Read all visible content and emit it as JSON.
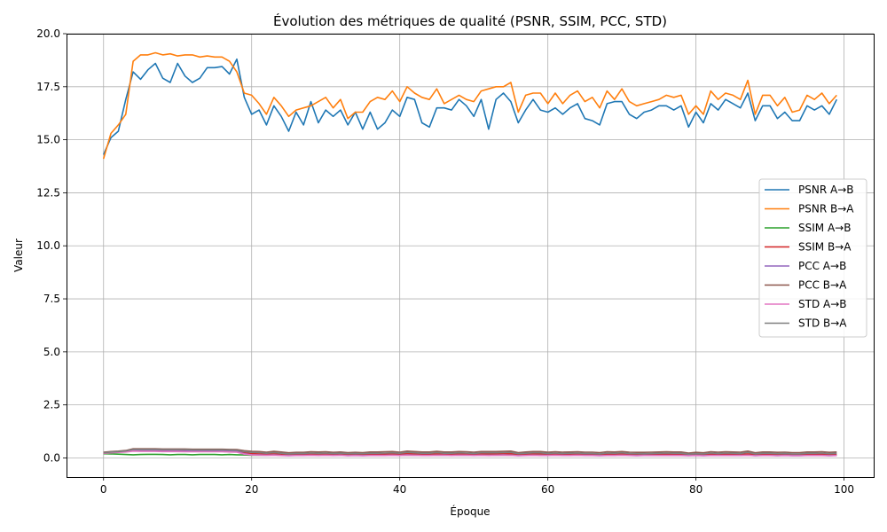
{
  "chart_data": {
    "type": "line",
    "title": "Évolution des métriques de qualité (PSNR, SSIM, PCC, STD)",
    "xlabel": "Époque",
    "ylabel": "Valeur",
    "xlim": [
      -5,
      104
    ],
    "ylim": [
      -0.9,
      20.0
    ],
    "x_ticks": [
      0,
      20,
      40,
      60,
      80,
      100
    ],
    "x_tick_labels": [
      "0",
      "20",
      "40",
      "60",
      "80",
      "100"
    ],
    "y_ticks": [
      0,
      2.5,
      5,
      7.5,
      10,
      12.5,
      15,
      17.5,
      20
    ],
    "y_tick_labels": [
      "0.0",
      "2.5",
      "5.0",
      "7.5",
      "10.0",
      "12.5",
      "15.0",
      "17.5",
      "20.0"
    ],
    "grid": true,
    "legend_position": "center-right",
    "x": [
      0,
      1,
      2,
      3,
      4,
      5,
      6,
      7,
      8,
      9,
      10,
      11,
      12,
      13,
      14,
      15,
      16,
      17,
      18,
      19,
      20,
      21,
      22,
      23,
      24,
      25,
      26,
      27,
      28,
      29,
      30,
      31,
      32,
      33,
      34,
      35,
      36,
      37,
      38,
      39,
      40,
      41,
      42,
      43,
      44,
      45,
      46,
      47,
      48,
      49,
      50,
      51,
      52,
      53,
      54,
      55,
      56,
      57,
      58,
      59,
      60,
      61,
      62,
      63,
      64,
      65,
      66,
      67,
      68,
      69,
      70,
      71,
      72,
      73,
      74,
      75,
      76,
      77,
      78,
      79,
      80,
      81,
      82,
      83,
      84,
      85,
      86,
      87,
      88,
      89,
      90,
      91,
      92,
      93,
      94,
      95,
      96,
      97,
      98,
      99
    ],
    "series": [
      {
        "name": "PSNR A→B",
        "color": "#1f77b4",
        "values": [
          14.3,
          15.1,
          15.4,
          16.9,
          18.2,
          17.85,
          18.3,
          18.6,
          17.9,
          17.7,
          18.6,
          18.0,
          17.7,
          17.9,
          18.4,
          18.4,
          18.45,
          18.1,
          18.8,
          17.0,
          16.2,
          16.4,
          15.7,
          16.6,
          16.1,
          15.4,
          16.3,
          15.7,
          16.8,
          15.8,
          16.4,
          16.1,
          16.4,
          15.7,
          16.3,
          15.5,
          16.3,
          15.5,
          15.8,
          16.4,
          16.1,
          17.0,
          16.9,
          15.8,
          15.6,
          16.5,
          16.5,
          16.4,
          16.9,
          16.6,
          16.1,
          16.9,
          15.5,
          16.9,
          17.2,
          16.8,
          15.8,
          16.4,
          16.9,
          16.4,
          16.3,
          16.5,
          16.2,
          16.5,
          16.7,
          16.0,
          15.9,
          15.7,
          16.7,
          16.8,
          16.8,
          16.2,
          16.0,
          16.3,
          16.4,
          16.6,
          16.6,
          16.4,
          16.6,
          15.6,
          16.3,
          15.8,
          16.7,
          16.4,
          16.9,
          16.7,
          16.5,
          17.2,
          15.9,
          16.6,
          16.6,
          16.0,
          16.3,
          15.9,
          15.9,
          16.6,
          16.4,
          16.6,
          16.2,
          16.9
        ]
      },
      {
        "name": "PSNR B→A",
        "color": "#ff7f0e",
        "values": [
          14.1,
          15.3,
          15.7,
          16.2,
          18.7,
          19.0,
          19.0,
          19.1,
          19.0,
          19.05,
          18.95,
          19.0,
          19.0,
          18.9,
          18.95,
          18.9,
          18.9,
          18.7,
          18.2,
          17.2,
          17.1,
          16.7,
          16.2,
          17.0,
          16.6,
          16.1,
          16.4,
          16.5,
          16.6,
          16.8,
          17.0,
          16.5,
          16.9,
          16.0,
          16.3,
          16.3,
          16.8,
          17.0,
          16.9,
          17.3,
          16.8,
          17.5,
          17.2,
          17.0,
          16.9,
          17.4,
          16.7,
          16.9,
          17.1,
          16.9,
          16.8,
          17.3,
          17.4,
          17.5,
          17.5,
          17.7,
          16.3,
          17.1,
          17.2,
          17.2,
          16.7,
          17.2,
          16.7,
          17.1,
          17.3,
          16.8,
          17.0,
          16.5,
          17.3,
          16.9,
          17.4,
          16.8,
          16.6,
          16.7,
          16.8,
          16.9,
          17.1,
          17.0,
          17.1,
          16.2,
          16.6,
          16.2,
          17.3,
          16.9,
          17.2,
          17.1,
          16.9,
          17.8,
          16.2,
          17.1,
          17.1,
          16.6,
          17.0,
          16.3,
          16.4,
          17.1,
          16.9,
          17.2,
          16.7,
          17.1
        ]
      },
      {
        "name": "SSIM A→B",
        "color": "#2ca02c",
        "values": [
          0.2,
          0.19,
          0.18,
          0.16,
          0.15,
          0.16,
          0.17,
          0.17,
          0.16,
          0.15,
          0.16,
          0.16,
          0.15,
          0.16,
          0.16,
          0.16,
          0.15,
          0.16,
          0.15,
          0.14,
          0.13,
          0.13,
          0.13,
          0.14,
          0.13,
          0.12,
          0.13,
          0.13,
          0.13,
          0.12,
          0.13,
          0.13,
          0.13,
          0.12,
          0.13,
          0.12,
          0.13,
          0.12,
          0.12,
          0.13,
          0.13,
          0.13,
          0.13,
          0.12,
          0.12,
          0.13,
          0.13,
          0.12,
          0.13,
          0.13,
          0.12,
          0.13,
          0.12,
          0.13,
          0.13,
          0.13,
          0.12,
          0.12,
          0.13,
          0.12,
          0.12,
          0.13,
          0.12,
          0.12,
          0.13,
          0.12,
          0.12,
          0.12,
          0.12,
          0.13,
          0.13,
          0.12,
          0.12,
          0.12,
          0.12,
          0.12,
          0.13,
          0.12,
          0.12,
          0.12,
          0.12,
          0.11,
          0.12,
          0.12,
          0.12,
          0.12,
          0.12,
          0.13,
          0.11,
          0.12,
          0.12,
          0.11,
          0.12,
          0.11,
          0.11,
          0.12,
          0.12,
          0.12,
          0.11,
          0.12
        ]
      },
      {
        "name": "SSIM B→A",
        "color": "#d62728",
        "values": [
          0.22,
          0.26,
          0.28,
          0.3,
          0.38,
          0.38,
          0.38,
          0.37,
          0.37,
          0.36,
          0.35,
          0.35,
          0.35,
          0.35,
          0.35,
          0.34,
          0.34,
          0.33,
          0.3,
          0.24,
          0.2,
          0.19,
          0.18,
          0.19,
          0.18,
          0.16,
          0.17,
          0.18,
          0.18,
          0.19,
          0.19,
          0.18,
          0.19,
          0.17,
          0.18,
          0.17,
          0.18,
          0.18,
          0.18,
          0.19,
          0.18,
          0.2,
          0.19,
          0.18,
          0.18,
          0.19,
          0.18,
          0.18,
          0.19,
          0.18,
          0.18,
          0.19,
          0.19,
          0.19,
          0.2,
          0.2,
          0.17,
          0.18,
          0.19,
          0.19,
          0.18,
          0.18,
          0.18,
          0.18,
          0.19,
          0.18,
          0.18,
          0.17,
          0.18,
          0.18,
          0.19,
          0.17,
          0.17,
          0.17,
          0.18,
          0.18,
          0.18,
          0.18,
          0.18,
          0.16,
          0.17,
          0.16,
          0.18,
          0.17,
          0.18,
          0.18,
          0.17,
          0.19,
          0.16,
          0.17,
          0.17,
          0.16,
          0.17,
          0.16,
          0.16,
          0.17,
          0.17,
          0.18,
          0.16,
          0.17
        ]
      },
      {
        "name": "PCC A→B",
        "color": "#9467bd",
        "values": [
          0.25,
          0.27,
          0.29,
          0.3,
          0.35,
          0.34,
          0.34,
          0.34,
          0.33,
          0.33,
          0.33,
          0.32,
          0.32,
          0.32,
          0.32,
          0.32,
          0.32,
          0.31,
          0.3,
          0.2,
          0.15,
          0.14,
          0.13,
          0.14,
          0.12,
          0.11,
          0.12,
          0.12,
          0.13,
          0.12,
          0.13,
          0.12,
          0.13,
          0.11,
          0.12,
          0.11,
          0.12,
          0.12,
          0.12,
          0.13,
          0.12,
          0.14,
          0.13,
          0.12,
          0.12,
          0.13,
          0.13,
          0.12,
          0.13,
          0.13,
          0.12,
          0.13,
          0.12,
          0.13,
          0.14,
          0.13,
          0.11,
          0.12,
          0.13,
          0.12,
          0.12,
          0.13,
          0.12,
          0.12,
          0.13,
          0.12,
          0.12,
          0.11,
          0.12,
          0.12,
          0.13,
          0.12,
          0.11,
          0.12,
          0.12,
          0.12,
          0.12,
          0.12,
          0.12,
          0.11,
          0.12,
          0.11,
          0.12,
          0.12,
          0.12,
          0.12,
          0.12,
          0.13,
          0.11,
          0.12,
          0.12,
          0.11,
          0.12,
          0.11,
          0.11,
          0.12,
          0.12,
          0.12,
          0.11,
          0.12
        ]
      },
      {
        "name": "PCC B→A",
        "color": "#8c564b",
        "values": [
          0.27,
          0.3,
          0.32,
          0.35,
          0.43,
          0.43,
          0.43,
          0.43,
          0.42,
          0.42,
          0.42,
          0.42,
          0.41,
          0.41,
          0.41,
          0.41,
          0.41,
          0.4,
          0.39,
          0.34,
          0.31,
          0.3,
          0.27,
          0.31,
          0.28,
          0.24,
          0.26,
          0.26,
          0.29,
          0.28,
          0.29,
          0.26,
          0.28,
          0.25,
          0.26,
          0.25,
          0.28,
          0.28,
          0.29,
          0.3,
          0.27,
          0.32,
          0.3,
          0.28,
          0.28,
          0.31,
          0.28,
          0.28,
          0.3,
          0.29,
          0.27,
          0.3,
          0.3,
          0.3,
          0.31,
          0.32,
          0.25,
          0.28,
          0.3,
          0.3,
          0.27,
          0.29,
          0.27,
          0.28,
          0.29,
          0.27,
          0.27,
          0.25,
          0.29,
          0.28,
          0.3,
          0.27,
          0.26,
          0.26,
          0.27,
          0.28,
          0.29,
          0.28,
          0.28,
          0.23,
          0.26,
          0.24,
          0.29,
          0.27,
          0.29,
          0.28,
          0.27,
          0.32,
          0.24,
          0.28,
          0.28,
          0.26,
          0.27,
          0.25,
          0.25,
          0.28,
          0.28,
          0.29,
          0.26,
          0.28
        ]
      },
      {
        "name": "STD A→B",
        "color": "#e377c2",
        "values": [
          0.22,
          0.24,
          0.26,
          0.28,
          0.32,
          0.31,
          0.31,
          0.31,
          0.3,
          0.3,
          0.3,
          0.29,
          0.29,
          0.29,
          0.29,
          0.29,
          0.29,
          0.28,
          0.27,
          0.18,
          0.14,
          0.13,
          0.12,
          0.13,
          0.11,
          0.1,
          0.11,
          0.11,
          0.12,
          0.11,
          0.12,
          0.11,
          0.12,
          0.1,
          0.11,
          0.1,
          0.11,
          0.11,
          0.11,
          0.12,
          0.11,
          0.13,
          0.12,
          0.11,
          0.11,
          0.12,
          0.12,
          0.11,
          0.12,
          0.12,
          0.11,
          0.12,
          0.11,
          0.12,
          0.13,
          0.12,
          0.1,
          0.11,
          0.12,
          0.11,
          0.11,
          0.12,
          0.11,
          0.11,
          0.12,
          0.11,
          0.11,
          0.1,
          0.11,
          0.11,
          0.12,
          0.11,
          0.1,
          0.11,
          0.11,
          0.11,
          0.11,
          0.11,
          0.11,
          0.1,
          0.11,
          0.1,
          0.11,
          0.11,
          0.11,
          0.11,
          0.11,
          0.12,
          0.1,
          0.11,
          0.11,
          0.1,
          0.11,
          0.1,
          0.1,
          0.11,
          0.11,
          0.11,
          0.1,
          0.11
        ]
      },
      {
        "name": "STD B→A",
        "color": "#7f7f7f",
        "values": [
          0.24,
          0.28,
          0.3,
          0.33,
          0.4,
          0.4,
          0.4,
          0.4,
          0.39,
          0.39,
          0.39,
          0.39,
          0.38,
          0.38,
          0.38,
          0.38,
          0.38,
          0.37,
          0.36,
          0.3,
          0.26,
          0.25,
          0.22,
          0.25,
          0.22,
          0.19,
          0.21,
          0.21,
          0.23,
          0.22,
          0.23,
          0.21,
          0.22,
          0.2,
          0.21,
          0.2,
          0.22,
          0.22,
          0.23,
          0.24,
          0.22,
          0.26,
          0.24,
          0.22,
          0.22,
          0.25,
          0.22,
          0.22,
          0.24,
          0.23,
          0.21,
          0.24,
          0.24,
          0.24,
          0.25,
          0.26,
          0.2,
          0.22,
          0.24,
          0.24,
          0.21,
          0.23,
          0.21,
          0.22,
          0.23,
          0.21,
          0.21,
          0.19,
          0.23,
          0.22,
          0.24,
          0.21,
          0.2,
          0.2,
          0.21,
          0.22,
          0.23,
          0.22,
          0.22,
          0.18,
          0.2,
          0.19,
          0.23,
          0.21,
          0.23,
          0.22,
          0.21,
          0.26,
          0.19,
          0.22,
          0.22,
          0.2,
          0.21,
          0.19,
          0.19,
          0.22,
          0.22,
          0.23,
          0.2,
          0.22
        ]
      }
    ]
  }
}
